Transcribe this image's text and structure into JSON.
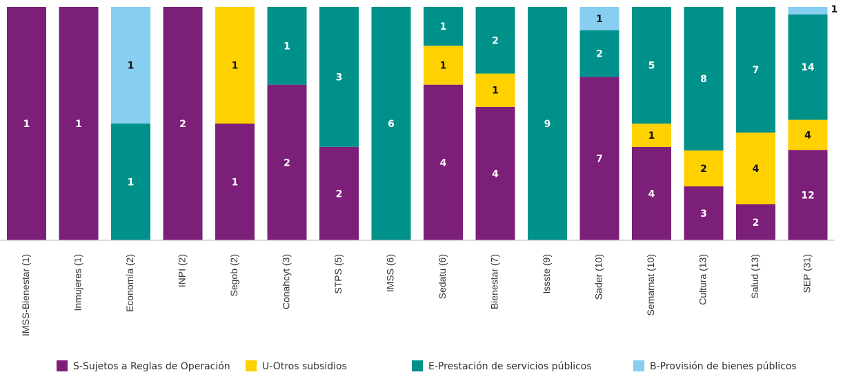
{
  "chart_data": {
    "type": "stacked_bar_percent",
    "categories": [
      "IMSS-Bienestar (1)",
      "Inmujeres (1)",
      "Economía (2)",
      "INPI (2)",
      "Segob (2)",
      "Conahcyt (3)",
      "STPS (5)",
      "IMSS (6)",
      "Sedatu (6)",
      "Bienestar (7)",
      "Issste (9)",
      "Sader (10)",
      "Semarnat (10)",
      "Cultura (13)",
      "Salud (13)",
      "SEP (31)"
    ],
    "series": [
      {
        "name": "S-Sujetos a Reglas de Operación",
        "color": "#7b1f78",
        "values": [
          1,
          1,
          0,
          2,
          1,
          2,
          2,
          0,
          4,
          4,
          0,
          7,
          4,
          3,
          2,
          12
        ]
      },
      {
        "name": "U-Otros subsidios",
        "color": "#ffd100",
        "values": [
          0,
          0,
          0,
          0,
          1,
          0,
          0,
          0,
          1,
          1,
          0,
          0,
          1,
          2,
          4,
          4
        ]
      },
      {
        "name": "E-Prestación de servicios públicos",
        "color": "#00918a",
        "values": [
          0,
          0,
          1,
          0,
          0,
          1,
          3,
          6,
          1,
          2,
          9,
          2,
          5,
          8,
          7,
          14
        ]
      },
      {
        "name": "B-Provisión de bienes públicos",
        "color": "#87cef0",
        "values": [
          0,
          0,
          1,
          0,
          0,
          0,
          0,
          0,
          0,
          0,
          0,
          1,
          0,
          0,
          0,
          1
        ]
      }
    ],
    "legend": "bottom"
  }
}
